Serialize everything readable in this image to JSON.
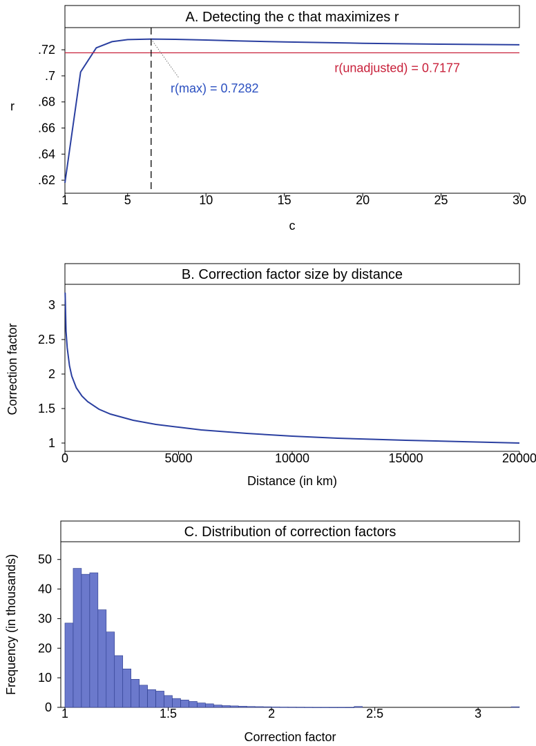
{
  "chart_data": [
    {
      "type": "line",
      "title": "A. Detecting the c that maximizes r",
      "xlabel": "c",
      "ylabel": "r",
      "xlim": [
        1,
        30
      ],
      "ylim": [
        0.61,
        0.737
      ],
      "xticks": [
        1,
        5,
        10,
        15,
        20,
        25,
        30
      ],
      "xtick_labels": [
        "1",
        "5",
        "10",
        "15",
        "20",
        "25",
        "30"
      ],
      "yticks": [
        0.62,
        0.64,
        0.66,
        0.68,
        0.7,
        0.72
      ],
      "ytick_labels": [
        ".62",
        ".64",
        ".66",
        ".68",
        ".7",
        ".72"
      ],
      "series": [
        {
          "color": "#2a3fa0",
          "x": [
            1,
            2,
            3,
            4,
            5,
            6.5,
            8,
            10,
            12,
            15,
            20,
            25,
            30
          ],
          "y": [
            0.618,
            0.703,
            0.7215,
            0.7262,
            0.7278,
            0.7282,
            0.728,
            0.7275,
            0.7268,
            0.726,
            0.725,
            0.7243,
            0.7238
          ]
        }
      ],
      "reference_line": {
        "y": 0.7177,
        "color": "#c8203a",
        "label": "r(unadjusted) = 0.7177"
      },
      "vertical_line": {
        "x": 6.5,
        "style": "dashed"
      },
      "annotation": {
        "text": "r(max) = 0.7282",
        "x": 6.5,
        "y": 0.7282,
        "color": "#2a4fc0"
      }
    },
    {
      "type": "line",
      "title": "B. Correction factor size by distance",
      "xlabel": "Distance (in km)",
      "ylabel": "Correction factor",
      "xlim": [
        0,
        20000
      ],
      "ylim": [
        0.88,
        3.3
      ],
      "xticks": [
        0,
        5000,
        10000,
        15000,
        20000
      ],
      "xtick_labels": [
        "0",
        "5000",
        "10000",
        "15000",
        "20000"
      ],
      "yticks": [
        1,
        1.5,
        2,
        2.5,
        3
      ],
      "ytick_labels": [
        "1",
        "1.5",
        "2",
        "2.5",
        "3"
      ],
      "series": [
        {
          "color": "#2a3fa0",
          "x": [
            10,
            50,
            100,
            200,
            300,
            500,
            750,
            1000,
            1500,
            2000,
            3000,
            4000,
            5000,
            6000,
            8000,
            10000,
            12000,
            15000,
            17500,
            20000
          ],
          "y": [
            3.18,
            2.62,
            2.38,
            2.12,
            1.97,
            1.8,
            1.68,
            1.6,
            1.49,
            1.42,
            1.33,
            1.27,
            1.23,
            1.19,
            1.14,
            1.1,
            1.07,
            1.04,
            1.02,
            1.0
          ]
        }
      ]
    },
    {
      "type": "bar",
      "title": "C. Distribution of correction factors",
      "xlabel": "Correction factor",
      "ylabel": "Frequency (in thousands)",
      "xlim": [
        0.98,
        3.2
      ],
      "ylim": [
        0,
        56
      ],
      "xticks": [
        1,
        1.5,
        2,
        2.5,
        3
      ],
      "xtick_labels": [
        "1",
        "1.5",
        "2",
        "2.5",
        "3"
      ],
      "yticks": [
        0,
        10,
        20,
        30,
        40,
        50
      ],
      "ytick_labels": [
        "0",
        "10",
        "20",
        "30",
        "40",
        "50"
      ],
      "bar_color": "#6b79cc",
      "bin_width": 0.04,
      "bin_starts": [
        1.0,
        1.04,
        1.08,
        1.12,
        1.16,
        1.2,
        1.24,
        1.28,
        1.32,
        1.36,
        1.4,
        1.44,
        1.48,
        1.52,
        1.56,
        1.6,
        1.64,
        1.68,
        1.72,
        1.76,
        1.8,
        1.84,
        1.88,
        1.92,
        1.96,
        2.0,
        2.04,
        2.08,
        2.12,
        2.16,
        2.2,
        2.24,
        2.28,
        2.32,
        2.36,
        2.4,
        3.16
      ],
      "values": [
        28.5,
        47,
        45,
        45.5,
        33,
        25.5,
        17.5,
        13,
        9.5,
        7.5,
        6,
        5.5,
        4,
        3,
        2.5,
        2,
        1.5,
        1.2,
        0.8,
        0.6,
        0.5,
        0.4,
        0.3,
        0.25,
        0.2,
        0.15,
        0.12,
        0.1,
        0.08,
        0.06,
        0.05,
        0.05,
        0.04,
        0.04,
        0.03,
        0.3,
        0.2
      ]
    }
  ]
}
